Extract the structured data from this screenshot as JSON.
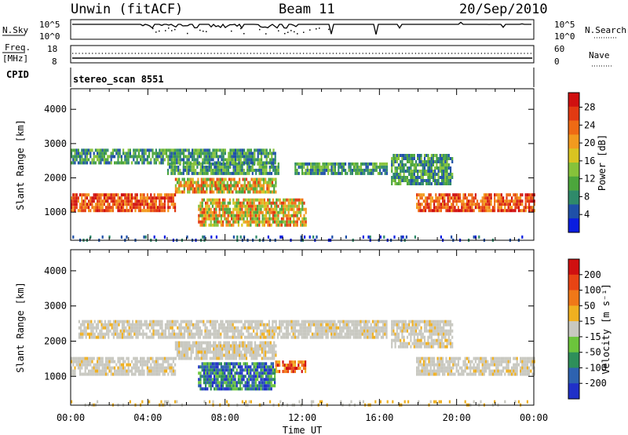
{
  "header": {
    "radar": "Unwin (fitACF)",
    "beam": "Beam 11",
    "date": "20/Sep/2010"
  },
  "strips": {
    "nsky_label": "N.Sky",
    "nsearch_label": "N.Search",
    "nsky_ticks": [
      "10^5",
      "10^0"
    ],
    "nsearch_ticks": [
      "10^5",
      "10^0"
    ],
    "freq_label": "Freq.",
    "freq_unit": "[MHz]",
    "freq_ticks": [
      "18",
      "8"
    ],
    "nave_label": "Nave",
    "nave_ticks": [
      "60",
      "0"
    ],
    "cpid_label": "CPID",
    "cpid_value": "stereo_scan 8551"
  },
  "chart_data": [
    {
      "type": "heatmap",
      "name": "power",
      "ylabel": "Slant Range [km]",
      "xlabel": "",
      "y_ticks": [
        1000,
        2000,
        3000,
        4000
      ],
      "ylim": [
        180,
        4600
      ],
      "xlim_hours": [
        0,
        24
      ],
      "colorbar": {
        "label": "Power [dB]",
        "ticks": [
          "4",
          "8",
          "12",
          "16",
          "20",
          "24",
          "28"
        ],
        "colors": [
          "#0a1de0",
          "#1f50a8",
          "#2f8a6a",
          "#4ca63c",
          "#86c23a",
          "#d9c421",
          "#f29a1e",
          "#ef6a14",
          "#e23a12",
          "#d01010"
        ]
      },
      "bands": [
        {
          "range_km": [
            1050,
            1550
          ],
          "hours": [
            [
              0.0,
              5.4
            ],
            [
              17.9,
              24.0
            ]
          ],
          "level": "high"
        },
        {
          "range_km": [
            1550,
            2000
          ],
          "hours": [
            [
              5.4,
              10.6
            ]
          ],
          "level": "mid-high"
        },
        {
          "range_km": [
            2100,
            2450
          ],
          "hours": [
            [
              5.0,
              10.8
            ],
            [
              11.6,
              16.4
            ]
          ],
          "level": "low-mid"
        },
        {
          "range_km": [
            2450,
            2850
          ],
          "hours": [
            [
              0.0,
              10.6
            ]
          ],
          "level": "low-mid"
        },
        {
          "range_km": [
            600,
            1400
          ],
          "hours": [
            [
              6.6,
              12.2
            ]
          ],
          "level": "mid-high"
        },
        {
          "range_km": [
            1800,
            2700
          ],
          "hours": [
            [
              16.6,
              19.8
            ]
          ],
          "level": "low-mid"
        },
        {
          "range_km": [
            200,
            320
          ],
          "hours": [
            [
              0.0,
              24.0
            ]
          ],
          "level": "noise"
        }
      ]
    },
    {
      "type": "heatmap",
      "name": "velocity",
      "ylabel": "Slant Range [km]",
      "xlabel": "Time UT",
      "y_ticks": [
        1000,
        2000,
        3000,
        4000
      ],
      "x_ticks": [
        "00:00",
        "04:00",
        "08:00",
        "12:00",
        "16:00",
        "20:00",
        "00:00"
      ],
      "ylim": [
        180,
        4600
      ],
      "xlim_hours": [
        0,
        24
      ],
      "colorbar": {
        "label": "Velocity [m s⁻¹]",
        "ticks": [
          "200",
          "100",
          "50",
          "15",
          "-15",
          "-50",
          "-100",
          "-200"
        ],
        "colors": [
          "#2030c8",
          "#2d62b0",
          "#2e8f5a",
          "#6cc43c",
          "#c8c8c0",
          "#f0b020",
          "#f07818",
          "#e84414",
          "#d01010"
        ]
      },
      "bands": [
        {
          "range_km": [
            1050,
            1550
          ],
          "hours": [
            [
              0.0,
              5.4
            ],
            [
              17.9,
              24.0
            ]
          ],
          "level": "ground-scatter"
        },
        {
          "range_km": [
            1550,
            2000
          ],
          "hours": [
            [
              5.4,
              10.6
            ]
          ],
          "level": "ground-scatter"
        },
        {
          "range_km": [
            2100,
            2600
          ],
          "hours": [
            [
              0.4,
              16.4
            ]
          ],
          "level": "ground-scatter"
        },
        {
          "range_km": [
            1100,
            1450
          ],
          "hours": [
            [
              10.6,
              12.2
            ]
          ],
          "level": "negative"
        },
        {
          "range_km": [
            600,
            1400
          ],
          "hours": [
            [
              6.6,
              10.6
            ]
          ],
          "level": "positive"
        },
        {
          "range_km": [
            1800,
            2600
          ],
          "hours": [
            [
              16.6,
              19.8
            ]
          ],
          "level": "ground-scatter"
        },
        {
          "range_km": [
            200,
            320
          ],
          "hours": [
            [
              0.0,
              24.0
            ]
          ],
          "level": "noise"
        }
      ]
    }
  ]
}
